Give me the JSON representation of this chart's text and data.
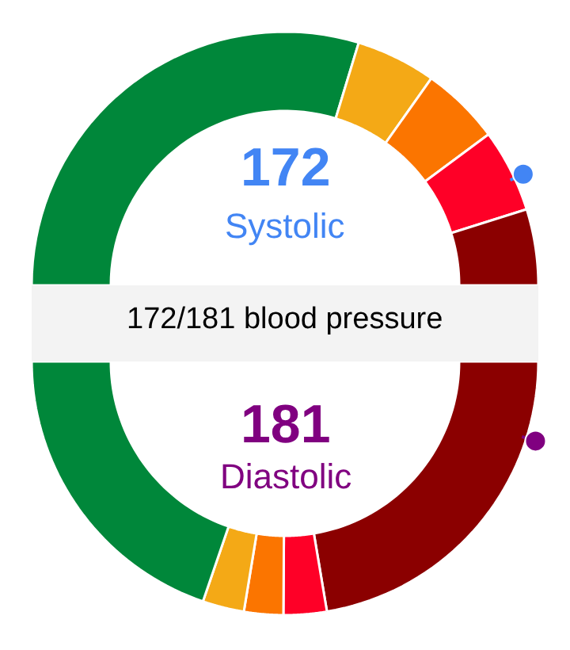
{
  "chart_data": [
    {
      "type": "donut",
      "title": "172/181 blood pressure",
      "categories": [
        null,
        null,
        null,
        null,
        null
      ],
      "values": [
        59.4,
        10.2,
        10.1,
        10.6,
        9.7
      ],
      "colors": [
        "#00873a",
        "#f4a916",
        "#fb7500",
        "#fe0027",
        "#8b0000"
      ],
      "annotations": [
        "172",
        "Systolic"
      ]
    },
    {
      "type": "donut",
      "categories": [
        null,
        null,
        null,
        null,
        null
      ],
      "values": [
        44.7,
        5.5,
        5.0,
        5.3,
        39.5
      ],
      "colors": [
        "#8b0000",
        "#fe0027",
        "#fb7500",
        "#f4a916",
        "#00873a"
      ],
      "annotations": [
        "181",
        "Diastolic"
      ]
    }
  ]
}
